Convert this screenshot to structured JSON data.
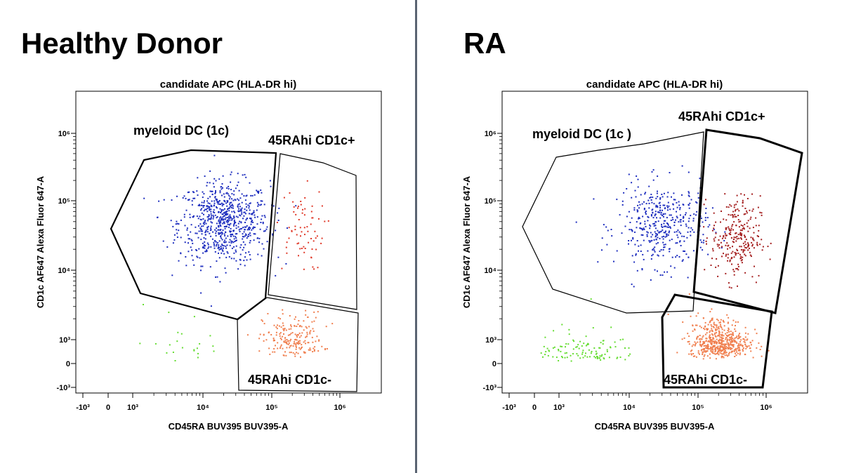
{
  "panels": {
    "left": {
      "title": "Healthy Donor"
    },
    "right": {
      "title": "RA"
    }
  },
  "chart_data": [
    {
      "type": "scatter",
      "title": "candidate APC (HLA-DR hi)",
      "xlabel": "CD45RA BUV395 BUV395-A",
      "ylabel": "CD1c AF647 Alexa Fluor 647-A",
      "x_scale": "biexponential",
      "y_scale": "biexponential",
      "x_ticks": [
        "-10³",
        "0",
        "10³",
        "10⁴",
        "10⁵",
        "10⁶"
      ],
      "y_ticks": [
        "-10³",
        "0",
        "10³",
        "10⁴",
        "10⁵",
        "10⁶"
      ],
      "grid": false,
      "gates": [
        {
          "name": "myeloid DC (1c)",
          "label": "myeloid DC (1c)"
        },
        {
          "name": "45RAhi CD1c+",
          "label": "45RAhi CD1c+"
        },
        {
          "name": "45RAhi CD1c-",
          "label": "45RAhi CD1c-"
        }
      ],
      "series": [
        {
          "name": "myeloid DC (1c)",
          "color": "#1f2fbf",
          "count": 720,
          "center": [
            20000,
            50000
          ]
        },
        {
          "name": "45RAhi CD1c+",
          "color": "#e03a2a",
          "count": 70,
          "center": [
            250000,
            40000
          ]
        },
        {
          "name": "45RAhi CD1c-",
          "color": "#f08050",
          "count": 200,
          "center": [
            200000,
            1000
          ]
        },
        {
          "color": "#66dd33",
          "count": 22,
          "center": [
            6000,
            900
          ]
        }
      ]
    },
    {
      "type": "scatter",
      "title": "candidate APC (HLA-DR hi)",
      "xlabel": "CD45RA BUV395 BUV395-A",
      "ylabel": "CD1c AF647 Alexa Fluor 647-A",
      "x_scale": "biexponential",
      "y_scale": "biexponential",
      "x_ticks": [
        "-10³",
        "0",
        "10³",
        "10⁴",
        "10⁵",
        "10⁶"
      ],
      "y_ticks": [
        "-10³",
        "0",
        "10³",
        "10⁴",
        "10⁵",
        "10⁶"
      ],
      "grid": false,
      "gates": [
        {
          "name": "myeloid DC (1c )",
          "label": "myeloid DC (1c )"
        },
        {
          "name": "45RAhi CD1c+",
          "label": "45RAhi CD1c+"
        },
        {
          "name": "45RAhi CD1c-",
          "label": "45RAhi CD1c-"
        }
      ],
      "series": [
        {
          "name": "myeloid DC (1c )",
          "color": "#1f2fbf",
          "count": 420,
          "center": [
            30000,
            45000
          ]
        },
        {
          "name": "45RAhi CD1c+",
          "color": "#a52020",
          "count": 260,
          "center": [
            350000,
            30000
          ]
        },
        {
          "name": "45RAhi CD1c-",
          "color": "#f08050",
          "count": 520,
          "center": [
            200000,
            900
          ]
        },
        {
          "color": "#66dd33",
          "count": 110,
          "center": [
            2000,
            500
          ]
        }
      ]
    }
  ]
}
